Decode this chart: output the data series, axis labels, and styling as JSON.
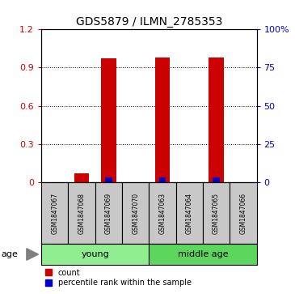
{
  "title": "GDS5879 / ILMN_2785353",
  "samples": [
    "GSM1847067",
    "GSM1847068",
    "GSM1847069",
    "GSM1847070",
    "GSM1847063",
    "GSM1847064",
    "GSM1847065",
    "GSM1847066"
  ],
  "count_values": [
    0.0,
    0.07,
    0.97,
    0.0,
    0.98,
    0.0,
    0.98,
    0.0
  ],
  "percentile_values": [
    0.0,
    0.0,
    3.0,
    0.0,
    3.0,
    0.0,
    3.0,
    0.0
  ],
  "groups": [
    {
      "label": "young",
      "start": 0,
      "end": 4,
      "color": "#90EE90"
    },
    {
      "label": "middle age",
      "start": 4,
      "end": 8,
      "color": "#5CD65C"
    }
  ],
  "ylim_left": [
    0,
    1.2
  ],
  "ylim_right": [
    0,
    100
  ],
  "yticks_left": [
    0,
    0.3,
    0.6,
    0.9,
    1.2
  ],
  "yticks_right": [
    0,
    25,
    50,
    75,
    100
  ],
  "bar_color_red": "#CC0000",
  "bar_color_blue": "#0000CC",
  "bar_width": 0.55,
  "blue_bar_width": 0.25,
  "bg_color": "#FFFFFF",
  "sample_box_color": "#C8C8C8",
  "age_label": "age",
  "legend_count": "count",
  "legend_percentile": "percentile rank within the sample"
}
